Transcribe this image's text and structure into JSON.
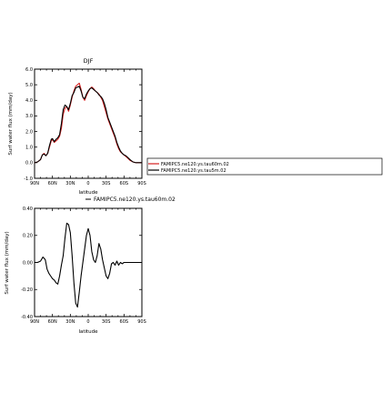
{
  "chart_data": [
    {
      "type": "line",
      "title": "DJF",
      "xlabel": "latitude",
      "ylabel": "Surf water flux (mm/day)",
      "xticks": [
        "90N",
        "60N",
        "30N",
        "0",
        "30S",
        "60S",
        "90S"
      ],
      "xlim": [
        90,
        -90
      ],
      "ylim": [
        -1.0,
        6.0
      ],
      "yticks": [
        "-1.0",
        "0.0",
        "1.0",
        "2.0",
        "3.0",
        "4.0",
        "5.0",
        "6.0"
      ],
      "ytick_values": [
        -1,
        0,
        1,
        2,
        3,
        4,
        5,
        6
      ],
      "legend_position": "right",
      "series": [
        {
          "name": "FAMIPC5.ne120.ys.tau60m.02",
          "color": "#d62020",
          "x": [
            90,
            85,
            80,
            77,
            74,
            71,
            68,
            65,
            62,
            60,
            57,
            54,
            51,
            48,
            45,
            42,
            39,
            36,
            33,
            30,
            27,
            24,
            21,
            18,
            15,
            12,
            9,
            6,
            3,
            0,
            -3,
            -6,
            -9,
            -12,
            -15,
            -18,
            -21,
            -24,
            -27,
            -30,
            -33,
            -36,
            -39,
            -42,
            -45,
            -48,
            -51,
            -54,
            -57,
            -60,
            -63,
            -66,
            -70,
            -75,
            -80,
            -85,
            -90
          ],
          "y": [
            0.0,
            0.05,
            0.2,
            0.5,
            0.6,
            0.45,
            0.6,
            1.0,
            1.4,
            1.5,
            1.3,
            1.4,
            1.5,
            1.7,
            2.2,
            3.1,
            3.5,
            3.6,
            3.3,
            3.7,
            4.2,
            4.6,
            4.9,
            5.0,
            5.1,
            4.7,
            4.2,
            4.0,
            4.3,
            4.55,
            4.75,
            4.85,
            4.75,
            4.6,
            4.5,
            4.4,
            4.2,
            4.0,
            3.6,
            3.2,
            2.8,
            2.5,
            2.2,
            1.9,
            1.6,
            1.2,
            0.9,
            0.7,
            0.6,
            0.5,
            0.4,
            0.3,
            0.15,
            0.05,
            0.0,
            0.0,
            0.0
          ]
        },
        {
          "name": "FAMIPC5.ne120.ys.tau5m.02",
          "color": "#000000",
          "x": [
            90,
            85,
            80,
            77,
            74,
            71,
            68,
            65,
            62,
            60,
            57,
            54,
            51,
            48,
            45,
            42,
            39,
            36,
            33,
            30,
            27,
            24,
            21,
            18,
            15,
            12,
            9,
            6,
            3,
            0,
            -3,
            -6,
            -9,
            -12,
            -15,
            -18,
            -21,
            -24,
            -27,
            -30,
            -33,
            -36,
            -39,
            -42,
            -45,
            -48,
            -51,
            -54,
            -57,
            -60,
            -63,
            -66,
            -70,
            -75,
            -80,
            -85,
            -90
          ],
          "y": [
            0.0,
            0.05,
            0.2,
            0.5,
            0.55,
            0.45,
            0.6,
            1.1,
            1.5,
            1.55,
            1.35,
            1.5,
            1.6,
            1.8,
            2.5,
            3.4,
            3.7,
            3.6,
            3.4,
            3.8,
            4.3,
            4.5,
            4.8,
            4.85,
            4.9,
            4.6,
            4.2,
            4.1,
            4.4,
            4.6,
            4.75,
            4.8,
            4.7,
            4.6,
            4.5,
            4.35,
            4.25,
            4.1,
            3.8,
            3.4,
            2.9,
            2.6,
            2.3,
            2.0,
            1.7,
            1.3,
            1.0,
            0.75,
            0.6,
            0.5,
            0.45,
            0.35,
            0.2,
            0.05,
            0.0,
            0.0,
            0.0
          ]
        }
      ]
    },
    {
      "type": "line",
      "title": "",
      "xlabel": "latitude",
      "ylabel": "Surf water flux (mm/day)",
      "xticks": [
        "90N",
        "60N",
        "30N",
        "0",
        "30S",
        "60S",
        "90S"
      ],
      "xlim": [
        90,
        -90
      ],
      "ylim": [
        -0.4,
        0.4
      ],
      "yticks": [
        "-0.40",
        "-0.20",
        "0.00",
        "0.20",
        "0.40"
      ],
      "ytick_values": [
        -0.4,
        -0.2,
        0,
        0.2,
        0.4
      ],
      "legend_position": "top",
      "series": [
        {
          "name": "FAMIPC5.ne120.ys.tau60m.02",
          "color": "#000000",
          "x": [
            90,
            85,
            80,
            76,
            72,
            69,
            66,
            63,
            60,
            57,
            54,
            51,
            48,
            45,
            42,
            39,
            36,
            33,
            30,
            27,
            24,
            21,
            18,
            15,
            12,
            9,
            6,
            3,
            0,
            -3,
            -6,
            -9,
            -12,
            -15,
            -18,
            -21,
            -24,
            -27,
            -30,
            -33,
            -36,
            -39,
            -42,
            -45,
            -48,
            -51,
            -54,
            -57,
            -60,
            -63,
            -66,
            -70,
            -75,
            -80,
            -85,
            -90
          ],
          "y": [
            0.0,
            0.0,
            0.01,
            0.04,
            0.02,
            -0.05,
            -0.08,
            -0.1,
            -0.12,
            -0.13,
            -0.15,
            -0.16,
            -0.1,
            -0.02,
            0.05,
            0.18,
            0.29,
            0.28,
            0.22,
            0.05,
            -0.15,
            -0.3,
            -0.33,
            -0.22,
            -0.1,
            0.0,
            0.1,
            0.2,
            0.25,
            0.2,
            0.08,
            0.02,
            0.0,
            0.05,
            0.14,
            0.1,
            0.02,
            -0.04,
            -0.1,
            -0.12,
            -0.08,
            -0.01,
            0.0,
            -0.02,
            0.01,
            -0.02,
            0.0,
            -0.01,
            0.0,
            0.0,
            0.0,
            0.0,
            0.0,
            0.0,
            0.0,
            0.0
          ]
        }
      ]
    }
  ]
}
